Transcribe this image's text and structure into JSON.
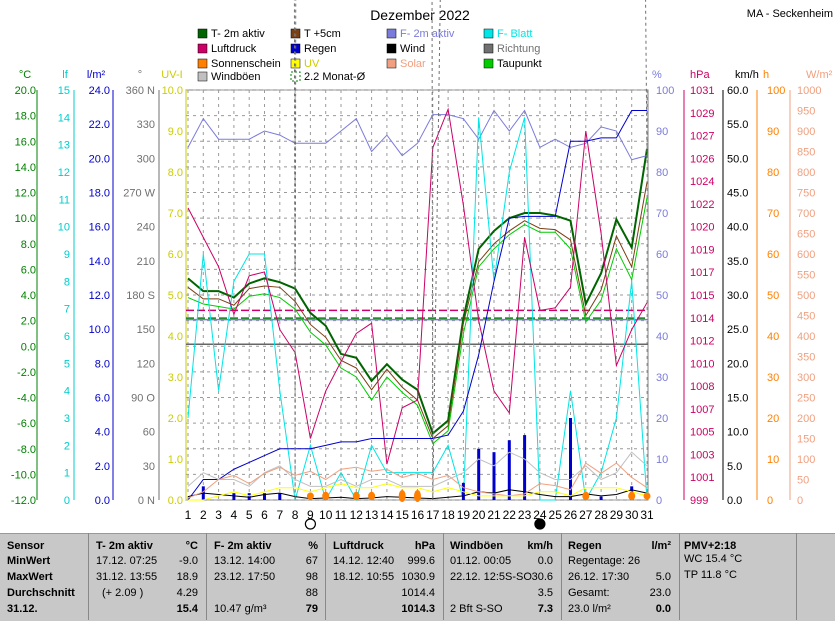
{
  "chart_data": {
    "type": "line",
    "title": "Dezember 2022",
    "station": "MA - Seckenheim",
    "x": [
      1,
      2,
      3,
      4,
      5,
      6,
      7,
      8,
      9,
      10,
      11,
      12,
      13,
      14,
      15,
      16,
      17,
      18,
      19,
      20,
      21,
      22,
      23,
      24,
      25,
      26,
      27,
      28,
      29,
      30,
      31
    ],
    "legend": [
      {
        "name": "T- 2m aktiv",
        "color": "#006400",
        "kind": "box"
      },
      {
        "name": "T +5cm",
        "color": "#7a3f12",
        "kind": "box"
      },
      {
        "name": "F- 2m aktiv",
        "color": "#7b7bdc",
        "kind": "box"
      },
      {
        "name": "F- Blatt",
        "color": "#00e5e5",
        "kind": "box"
      },
      {
        "name": "Luftdruck",
        "color": "#cc0066",
        "kind": "box"
      },
      {
        "name": "Regen",
        "color": "#0000cc",
        "kind": "box"
      },
      {
        "name": "Wind",
        "color": "#000000",
        "kind": "box"
      },
      {
        "name": "Richtung",
        "color": "#707070",
        "kind": "box"
      },
      {
        "name": "Sonnenschein",
        "color": "#ff8000",
        "kind": "box"
      },
      {
        "name": "UV",
        "color": "#ffff00",
        "kind": "box"
      },
      {
        "name": "Solar",
        "color": "#f0a080",
        "kind": "box"
      },
      {
        "name": "Taupunkt",
        "color": "#00cc00",
        "kind": "box"
      },
      {
        "name": "Windböen",
        "color": "#c0c0c0",
        "kind": "box"
      },
      {
        "name": "2.2 Monat-Ø",
        "color": "#008000",
        "kind": "dash"
      }
    ],
    "axes": {
      "temp": {
        "label": "°C",
        "color": "#008000",
        "min": -12,
        "max": 20,
        "step": 2,
        "ticks": [
          "20.0",
          "18.0",
          "16.0",
          "14.0",
          "12.0",
          "10.0",
          "8.0",
          "6.0",
          "4.0",
          "2.0",
          "0.0",
          "-2.0",
          "-4.0",
          "-6.0",
          "-8.0",
          "-10.0",
          "-12.0"
        ]
      },
      "leaf": {
        "label": "lf",
        "color": "#00cccc",
        "ticks": [
          "15",
          "14",
          "13",
          "12",
          "11",
          "10",
          "9",
          "8",
          "7",
          "6",
          "5",
          "4",
          "3",
          "2",
          "1",
          "0"
        ]
      },
      "rain": {
        "label": "l/m²",
        "color": "#0000cc",
        "min": 0,
        "max": 24,
        "ticks": [
          "24.0",
          "22.0",
          "20.0",
          "18.0",
          "16.0",
          "14.0",
          "12.0",
          "10.0",
          "8.0",
          "6.0",
          "4.0",
          "2.0",
          "0.0"
        ]
      },
      "dir": {
        "label": "°",
        "color": "#707070",
        "ticks": [
          "360 N",
          "330",
          "300",
          "270 W",
          "240",
          "210",
          "180 S",
          "150",
          "120",
          "90 O",
          "60",
          "30",
          "0 N"
        ]
      },
      "uv": {
        "label": "UV-I",
        "color": "#cccc00",
        "min": 0,
        "max": 10,
        "ticks": [
          "10.0",
          "9.0",
          "8.0",
          "7.0",
          "6.0",
          "5.0",
          "4.0",
          "3.0",
          "2.0",
          "1.0",
          "0.0"
        ]
      },
      "hum": {
        "label": "%",
        "color": "#7b7bdc",
        "min": 0,
        "max": 100,
        "ticks": [
          "100",
          "90",
          "80",
          "70",
          "60",
          "50",
          "40",
          "30",
          "20",
          "10",
          "0"
        ]
      },
      "press": {
        "label": "hPa",
        "color": "#cc0066",
        "min": 999,
        "max": 1031,
        "ticks": [
          "1031",
          "1029",
          "1027",
          "1026",
          "1024",
          "1022",
          "1020",
          "1019",
          "1017",
          "1015",
          "1014",
          "1012",
          "1010",
          "1008",
          "1007",
          "1005",
          "1003",
          "1001",
          "999"
        ]
      },
      "wind": {
        "label": "km/h",
        "color": "#000000",
        "min": 0,
        "max": 60,
        "ticks": [
          "60.0",
          "55.0",
          "50.0",
          "45.0",
          "40.0",
          "35.0",
          "30.0",
          "25.0",
          "20.0",
          "15.0",
          "10.0",
          "5.0",
          "0.0"
        ]
      },
      "sun": {
        "label": "h",
        "color": "#ff8000",
        "min": 0,
        "max": 100,
        "ticks": [
          "100",
          "90",
          "80",
          "70",
          "60",
          "50",
          "40",
          "30",
          "20",
          "10",
          "0"
        ]
      },
      "solar": {
        "label": "W/m²",
        "color": "#f0a080",
        "min": 0,
        "max": 1000,
        "ticks": [
          "1000",
          "950",
          "900",
          "850",
          "800",
          "750",
          "700",
          "650",
          "600",
          "550",
          "500",
          "450",
          "400",
          "350",
          "300",
          "250",
          "200",
          "150",
          "100",
          "50",
          "0"
        ]
      }
    },
    "series": [
      {
        "name": "T- 2m aktiv",
        "axis": "temp",
        "color": "#006400",
        "width": 2,
        "values": [
          5.3,
          4.3,
          4.3,
          3.8,
          4.9,
          5.3,
          5.0,
          4.5,
          2.6,
          1.6,
          -0.6,
          -0.9,
          -2.7,
          -1.4,
          -2.6,
          -3.4,
          -6.8,
          -5.8,
          2.2,
          7.6,
          9.0,
          10.0,
          10.4,
          10.4,
          10.2,
          9.8,
          3.3,
          5.7,
          9.9,
          7.7,
          15.4
        ]
      },
      {
        "name": "T +5cm",
        "axis": "temp",
        "color": "#7a3f12",
        "width": 1,
        "values": [
          4.6,
          3.7,
          3.7,
          3.2,
          4.5,
          4.7,
          4.6,
          3.5,
          1.7,
          0.7,
          -1.1,
          -1.7,
          -3.4,
          -1.8,
          -3.2,
          -4.2,
          -7.2,
          -6.2,
          1.8,
          6.6,
          8.0,
          9.0,
          9.8,
          9.2,
          9.1,
          8.3,
          2.4,
          4.4,
          8.6,
          6.2,
          12.8
        ]
      },
      {
        "name": "Taupunkt",
        "axis": "temp",
        "color": "#00cc00",
        "width": 1,
        "values": [
          3.8,
          3.3,
          3.1,
          2.9,
          3.9,
          4.1,
          3.8,
          2.9,
          1.1,
          0.1,
          -1.7,
          -2.4,
          -4.2,
          -2.4,
          -3.6,
          -4.6,
          -7.6,
          -6.6,
          1.0,
          6.2,
          7.6,
          8.7,
          9.5,
          8.9,
          8.9,
          7.6,
          1.9,
          3.6,
          7.6,
          5.2,
          11.6
        ]
      },
      {
        "name": "F- 2m aktiv",
        "axis": "hum",
        "color": "#7b7bdc",
        "width": 1,
        "values": [
          86,
          93,
          88,
          88,
          88,
          90,
          89,
          87,
          87,
          87,
          90,
          93,
          85,
          89,
          84,
          87,
          94,
          94,
          93,
          88,
          95,
          90,
          95,
          86,
          88,
          86,
          87,
          91,
          90,
          83,
          84
        ]
      },
      {
        "name": "F- Blatt",
        "axis": "leaf",
        "color": "#00e5e5",
        "width": 1,
        "values": [
          3,
          9,
          4,
          8,
          9,
          9,
          4,
          0,
          2,
          0,
          1,
          0,
          2,
          1,
          1,
          1,
          1,
          2,
          0,
          14,
          8,
          12,
          14,
          0,
          0,
          4,
          0,
          1,
          3,
          8,
          0
        ]
      },
      {
        "name": "Luftdruck",
        "axis": "press",
        "color": "#cc0066",
        "width": 1,
        "values": [
          1021.8,
          1019.5,
          1017.2,
          1013.5,
          1016.5,
          1016.8,
          1012.3,
          1010.5,
          1003.8,
          1007.5,
          1009.8,
          1012.0,
          1012.8,
          1001.8,
          1006.2,
          1006.8,
          1026.5,
          1029.5,
          1022.0,
          1013.0,
          1007.5,
          1005.8,
          1019.5,
          1013.8,
          1014.0,
          1015.6,
          1027.8,
          1019.8,
          1009.5,
          1012.3,
          1014.4
        ]
      },
      {
        "name": "Regen",
        "axis": "rain",
        "color": "#0000cc",
        "width": 1,
        "values": [
          0,
          1.2,
          1.2,
          1.8,
          2.2,
          2.6,
          3.0,
          3.0,
          3.0,
          3.2,
          3.4,
          3.4,
          3.6,
          3.6,
          3.6,
          3.6,
          3.6,
          3.8,
          5.2,
          8.5,
          12.8,
          16.5,
          16.6,
          16.6,
          16.6,
          21.0,
          21.0,
          21.2,
          21.2,
          22.8,
          22.8
        ]
      },
      {
        "name": "Regen täglich",
        "axis": "rain",
        "color": "#0000cc",
        "kind": "bar",
        "values": [
          0,
          0.8,
          0,
          0.4,
          0.4,
          0.4,
          0.4,
          0,
          0,
          0.4,
          0,
          0,
          0,
          0,
          0,
          0,
          0,
          0,
          1,
          3,
          2.8,
          3.5,
          3.8,
          0,
          0,
          4.8,
          0,
          0.2,
          0,
          0.8,
          0
        ]
      },
      {
        "name": "Wind",
        "axis": "wind",
        "color": "#000000",
        "width": 1,
        "values": [
          0.5,
          1.0,
          0.8,
          0.6,
          0.4,
          0.8,
          1.0,
          0.5,
          0.2,
          0.3,
          0.4,
          0.2,
          0.3,
          0.5,
          0.4,
          0.3,
          0.2,
          0.4,
          0.6,
          1.2,
          1.0,
          1.5,
          1.2,
          0.8,
          0.5,
          0.5,
          0.9,
          0.6,
          0.8,
          1.5,
          1.0
        ]
      },
      {
        "name": "Richtung",
        "axis": "dir",
        "color": "#707070",
        "width": 1,
        "dashed": true,
        "values": [
          30,
          330,
          180,
          20,
          300,
          270,
          330,
          0,
          350,
          330,
          300,
          150,
          330,
          40,
          30,
          300,
          0,
          30,
          330,
          20,
          60,
          330,
          300,
          320,
          200,
          330,
          40,
          340,
          60,
          60,
          10
        ]
      },
      {
        "name": "Windböen",
        "axis": "wind",
        "color": "#c0c0c0",
        "width": 1,
        "values": [
          2,
          4,
          3,
          3,
          2,
          4,
          5,
          3,
          2,
          2,
          3,
          2,
          3,
          3,
          2,
          2,
          2,
          3,
          4,
          6,
          5,
          7,
          6,
          4,
          3,
          3,
          5,
          3,
          4,
          7,
          5
        ]
      },
      {
        "name": "Solar",
        "axis": "solar",
        "color": "#f0a080",
        "width": 1,
        "values": [
          5,
          20,
          50,
          60,
          40,
          65,
          80,
          60,
          70,
          50,
          75,
          80,
          70,
          75,
          55,
          65,
          50,
          60,
          30,
          20,
          15,
          10,
          15,
          40,
          35,
          25,
          90,
          65,
          90,
          55,
          30
        ]
      },
      {
        "name": "UV",
        "axis": "uv",
        "color": "#ffff00",
        "width": 1,
        "values": [
          0,
          0,
          0.1,
          0.2,
          0.1,
          0.2,
          0.3,
          0.3,
          0.2,
          0.3,
          0.4,
          0.3,
          0.3,
          0.4,
          0.3,
          0.3,
          0.2,
          0.3,
          0.2,
          0.1,
          0.1,
          0.1,
          0.1,
          0.2,
          0.2,
          0.1,
          0.3,
          0.3,
          0.3,
          0.2,
          0.1
        ]
      },
      {
        "name": "Sonnenschein",
        "axis": "sun",
        "color": "#ff8000",
        "kind": "dot",
        "values": [
          0,
          0,
          0,
          0,
          0,
          0,
          0,
          0,
          1,
          1.5,
          0,
          1.5,
          1.5,
          0,
          3,
          3,
          0,
          0,
          0,
          0,
          0,
          0,
          0,
          0,
          0,
          0,
          1.5,
          0,
          0,
          1.5,
          1
        ]
      }
    ],
    "ref_lines": [
      {
        "axis": "temp",
        "value": 2.2,
        "color": "#008000",
        "dash": true
      },
      {
        "axis": "hum",
        "value": 44,
        "color": "#7b7bdc",
        "dash": false
      },
      {
        "axis": "press",
        "value": 1013.8,
        "color": "#cc0066",
        "dash": true
      },
      {
        "axis": "uv",
        "value": 3.8,
        "color": "#666666",
        "dash": false
      }
    ],
    "moon": [
      {
        "day": 9,
        "phase": "full"
      },
      {
        "day": 24,
        "phase": "new"
      }
    ]
  },
  "table": {
    "sensor": {
      "title": "Sensor",
      "rows": [
        "MinWert",
        "MaxWert",
        "Durchschnitt",
        "31.12."
      ]
    },
    "temp": {
      "title": "T- 2m aktiv",
      "unit": "°C",
      "rows": [
        [
          "17.12.  07:25",
          "-9.0"
        ],
        [
          "31.12.  13:55",
          "18.9"
        ],
        [
          "(+ 2.09 )",
          "4.29"
        ],
        [
          "",
          "15.4"
        ]
      ]
    },
    "hum": {
      "title": "F- 2m aktiv",
      "unit": "%",
      "rows": [
        [
          "13.12.  14:00",
          "67"
        ],
        [
          "23.12.  17:50",
          "98"
        ],
        [
          "",
          "88"
        ],
        [
          "10.47 g/m³",
          "79"
        ]
      ]
    },
    "press": {
      "title": "Luftdruck",
      "unit": "hPa",
      "rows": [
        [
          "14.12.  12:40",
          "999.6"
        ],
        [
          "18.12.  10:55",
          "1030.9"
        ],
        [
          "",
          "1014.4"
        ],
        [
          "",
          "1014.3"
        ]
      ]
    },
    "gust": {
      "title": "Windböen",
      "unit": "km/h",
      "rows": [
        [
          "01.12.  00:05",
          "0.0"
        ],
        [
          "22.12.  12:5S-SO",
          "30.6"
        ],
        [
          "",
          "3.5"
        ],
        [
          "2 Bft S-SO",
          "7.3"
        ]
      ]
    },
    "rain": {
      "title": "Regen",
      "unit": "l/m²",
      "rows": [
        [
          "Regentage: 26",
          ""
        ],
        [
          "26.12.  17:30",
          "5.0"
        ],
        [
          "Gesamt:",
          "23.0"
        ],
        [
          "23.0 l/m²",
          "0.0"
        ]
      ]
    },
    "pmv": {
      "title": "PMV+2:18",
      "rows": [
        "WC 15.4 °C",
        "TP 11.8 °C"
      ]
    }
  }
}
